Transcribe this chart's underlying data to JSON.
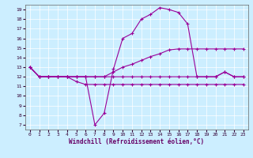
{
  "title": "",
  "xlabel": "Windchill (Refroidissement éolien,°C)",
  "background_color": "#cceeff",
  "line_color": "#990099",
  "xlim": [
    -0.5,
    23.5
  ],
  "ylim": [
    6.5,
    19.5
  ],
  "xticks": [
    0,
    1,
    2,
    3,
    4,
    5,
    6,
    7,
    8,
    9,
    10,
    11,
    12,
    13,
    14,
    15,
    16,
    17,
    18,
    19,
    20,
    21,
    22,
    23
  ],
  "yticks": [
    7,
    8,
    9,
    10,
    11,
    12,
    13,
    14,
    15,
    16,
    17,
    18,
    19
  ],
  "series": [
    {
      "x": [
        0,
        1,
        2,
        3,
        4,
        5,
        6,
        7,
        8,
        9,
        10,
        11,
        12,
        13,
        14,
        15,
        16,
        17,
        18,
        19,
        20,
        21,
        22,
        23
      ],
      "y": [
        13,
        12,
        12,
        12,
        12,
        12,
        12,
        7,
        8.2,
        12.8,
        16,
        16.5,
        18,
        18.5,
        19.2,
        19,
        18.7,
        17.5,
        12,
        12,
        12,
        12.5,
        12,
        12
      ]
    },
    {
      "x": [
        0,
        1,
        2,
        3,
        4,
        5,
        6,
        7,
        8,
        9,
        10,
        11,
        12,
        13,
        14,
        15,
        16,
        17,
        18,
        19,
        20,
        21,
        22,
        23
      ],
      "y": [
        13,
        12,
        12,
        12,
        12,
        11.5,
        11.2,
        11.2,
        11.2,
        11.2,
        11.2,
        11.2,
        11.2,
        11.2,
        11.2,
        11.2,
        11.2,
        11.2,
        11.2,
        11.2,
        11.2,
        11.2,
        11.2,
        11.2
      ]
    },
    {
      "x": [
        0,
        1,
        2,
        3,
        4,
        5,
        6,
        7,
        8,
        9,
        10,
        11,
        12,
        13,
        14,
        15,
        16,
        17,
        18,
        19,
        20,
        21,
        22,
        23
      ],
      "y": [
        13,
        12,
        12,
        12,
        12,
        12,
        12,
        12,
        12,
        12,
        12,
        12,
        12,
        12,
        12,
        12,
        12,
        12,
        12,
        12,
        12,
        12.5,
        12,
        12
      ]
    },
    {
      "x": [
        0,
        1,
        2,
        3,
        4,
        5,
        6,
        7,
        8,
        9,
        10,
        11,
        12,
        13,
        14,
        15,
        16,
        17,
        18,
        19,
        20,
        21,
        22,
        23
      ],
      "y": [
        13,
        12,
        12,
        12,
        12,
        12,
        12,
        12,
        12,
        12.5,
        13,
        13.3,
        13.7,
        14.1,
        14.4,
        14.8,
        14.9,
        14.9,
        14.9,
        14.9,
        14.9,
        14.9,
        14.9,
        14.9
      ]
    }
  ]
}
